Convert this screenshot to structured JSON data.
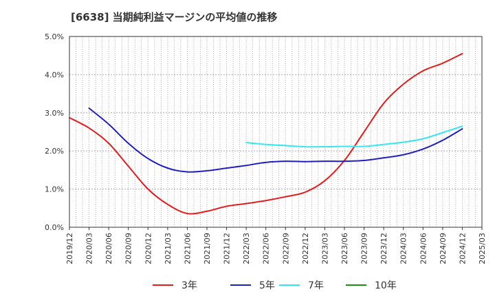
{
  "chart_data": {
    "type": "line",
    "title": "[6638]  当期純利益マージンの平均値の推移",
    "xlabel": "",
    "ylabel": "",
    "x_ticks": [
      "2019/12",
      "2020/03",
      "2020/06",
      "2020/09",
      "2020/12",
      "2021/03",
      "2021/06",
      "2021/09",
      "2021/12",
      "2022/03",
      "2022/06",
      "2022/09",
      "2022/12",
      "2023/03",
      "2023/06",
      "2023/09",
      "2023/12",
      "2024/03",
      "2024/06",
      "2024/09",
      "2024/12",
      "2025/03"
    ],
    "y_ticks": [
      "0.0%",
      "1.0%",
      "2.0%",
      "3.0%",
      "4.0%",
      "5.0%"
    ],
    "ylim": [
      0,
      5.0
    ],
    "grid": true,
    "legend_position": "bottom",
    "series": [
      {
        "name": "3年",
        "color": "#e41a1c",
        "x": [
          "2019/12",
          "2020/03",
          "2020/06",
          "2020/09",
          "2020/12",
          "2021/03",
          "2021/06",
          "2021/09",
          "2021/12",
          "2022/03",
          "2022/06",
          "2022/09",
          "2022/12",
          "2023/03",
          "2023/06",
          "2023/09",
          "2023/12",
          "2024/03",
          "2024/06",
          "2024/09",
          "2024/12"
        ],
        "values": [
          2.87,
          2.6,
          2.2,
          1.6,
          1.0,
          0.6,
          0.36,
          0.42,
          0.55,
          0.62,
          0.7,
          0.8,
          0.92,
          1.22,
          1.75,
          2.5,
          3.25,
          3.75,
          4.1,
          4.3,
          4.55
        ]
      },
      {
        "name": "5年",
        "color": "#1f1fbf",
        "x": [
          "2020/03",
          "2020/06",
          "2020/09",
          "2020/12",
          "2021/03",
          "2021/06",
          "2021/09",
          "2021/12",
          "2022/03",
          "2022/06",
          "2022/09",
          "2022/12",
          "2023/03",
          "2023/06",
          "2023/09",
          "2023/12",
          "2024/03",
          "2024/06",
          "2024/09",
          "2024/12"
        ],
        "values": [
          3.12,
          2.7,
          2.2,
          1.8,
          1.55,
          1.45,
          1.48,
          1.55,
          1.62,
          1.7,
          1.73,
          1.72,
          1.73,
          1.73,
          1.75,
          1.82,
          1.9,
          2.05,
          2.28,
          2.58
        ]
      },
      {
        "name": "7年",
        "color": "#33e6f0",
        "x": [
          "2022/03",
          "2022/06",
          "2022/09",
          "2022/12",
          "2023/03",
          "2023/06",
          "2023/09",
          "2023/12",
          "2024/03",
          "2024/06",
          "2024/09",
          "2024/12"
        ],
        "values": [
          2.22,
          2.17,
          2.14,
          2.11,
          2.11,
          2.12,
          2.12,
          2.17,
          2.23,
          2.32,
          2.48,
          2.65
        ]
      },
      {
        "name": "10年",
        "color": "#1a8c1a",
        "x": [],
        "values": []
      }
    ]
  }
}
